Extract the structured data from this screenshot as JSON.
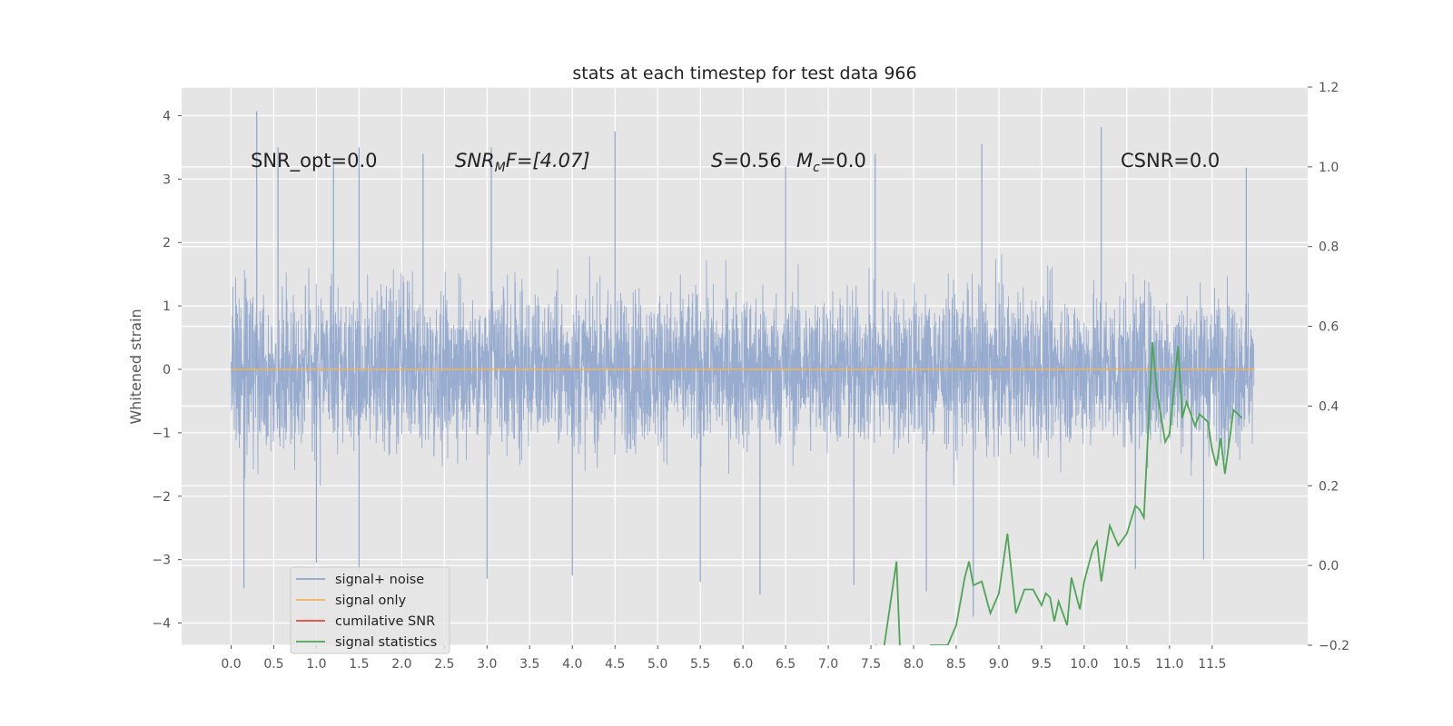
{
  "chart_data": {
    "type": "line",
    "title": "stats at each timestep for test data 966",
    "ylabel": "Whitened strain",
    "xlabel": "",
    "xlim": [
      -0.58,
      12.62
    ],
    "ylim": [
      -4.35,
      4.45
    ],
    "y2lim": [
      -0.2,
      1.2
    ],
    "x_ticks": [
      "0.0",
      "0.5",
      "1.0",
      "1.5",
      "2.0",
      "2.5",
      "3.0",
      "3.5",
      "4.0",
      "4.5",
      "5.0",
      "5.5",
      "6.0",
      "6.5",
      "7.0",
      "7.5",
      "8.0",
      "8.5",
      "9.0",
      "9.5",
      "10.0",
      "10.5",
      "11.0",
      "11.5"
    ],
    "y_ticks": [
      "4",
      "3",
      "2",
      "1",
      "0",
      "−1",
      "−2",
      "−3",
      "−4"
    ],
    "y2_ticks": [
      "1.2",
      "1.0",
      "0.8",
      "0.6",
      "0.4",
      "0.2",
      "0.0",
      "−0.2"
    ],
    "grid": true,
    "legend_position": "lower-left",
    "annotations": {
      "snr_opt": "SNR_opt=0.0",
      "snr_mf_italic": "SNR",
      "snr_mf_sub": "M",
      "snr_mf_rest": "F=[4.07]",
      "s_italic": "S",
      "s_rest": "=0.56",
      "mc_italic": "M",
      "mc_sub": "c",
      "mc_rest": "=0.0",
      "csnr": "CSNR=0.0"
    },
    "colors": {
      "noise": "#8fa5cc",
      "signal": "#f2b25c",
      "snr": "#e24a33",
      "stats": "#4ea556",
      "background": "#e5e5e5",
      "grid": "#ffffff"
    },
    "series": [
      {
        "name": "signal+ noise",
        "color": "#8fa5cc",
        "x_range": [
          0.0,
          11.99
        ],
        "typical_band": [
          -1.85,
          1.6
        ],
        "x_peaks": [
          0.3,
          0.55,
          1.2,
          1.5,
          2.25,
          3.05,
          4.5,
          6.5,
          7.55,
          8.8,
          10.2,
          11.9
        ],
        "y_peaks": [
          4.07,
          3.5,
          3.3,
          3.5,
          3.4,
          3.5,
          3.75,
          3.2,
          3.4,
          3.55,
          3.82,
          3.18
        ],
        "x_troughs": [
          0.15,
          1.0,
          1.5,
          3.0,
          4.0,
          5.5,
          6.2,
          7.3,
          8.15,
          8.7,
          10.6,
          11.4
        ],
        "y_troughs": [
          -3.45,
          -3.05,
          -3.2,
          -3.3,
          -3.25,
          -3.35,
          -3.55,
          -3.4,
          -3.5,
          -3.9,
          -3.15,
          -3.0
        ]
      },
      {
        "name": "signal only",
        "color": "#f2b25c",
        "x": [
          0.0,
          12.0
        ],
        "y": [
          0.0,
          0.0
        ]
      },
      {
        "name": "cumilative SNR",
        "color": "#e24a33",
        "x": [],
        "y": []
      },
      {
        "name": "signal statistics",
        "color": "#4ea556",
        "axis": "right",
        "x": [
          7.55,
          7.65,
          7.8,
          7.85,
          8.1,
          8.2,
          8.4,
          8.5,
          8.6,
          8.65,
          8.7,
          8.8,
          8.9,
          9.0,
          9.1,
          9.2,
          9.3,
          9.4,
          9.5,
          9.55,
          9.6,
          9.65,
          9.7,
          9.8,
          9.85,
          9.95,
          10.0,
          10.1,
          10.15,
          10.2,
          10.3,
          10.4,
          10.5,
          10.6,
          10.65,
          10.7,
          10.8,
          10.85,
          10.95,
          11.0,
          11.1,
          11.15,
          11.2,
          11.3,
          11.35,
          11.45,
          11.5,
          11.55,
          11.6,
          11.65,
          11.75,
          11.85
        ],
        "y": [
          -0.2,
          -0.21,
          0.01,
          -0.26,
          -0.23,
          -0.2,
          -0.2,
          -0.15,
          -0.03,
          0.01,
          -0.05,
          -0.04,
          -0.12,
          -0.07,
          0.08,
          -0.12,
          -0.06,
          -0.06,
          -0.1,
          -0.07,
          -0.08,
          -0.14,
          -0.09,
          -0.15,
          -0.03,
          -0.11,
          -0.04,
          0.04,
          0.06,
          -0.04,
          0.1,
          0.05,
          0.08,
          0.15,
          0.14,
          0.12,
          0.56,
          0.44,
          0.31,
          0.33,
          0.55,
          0.37,
          0.41,
          0.35,
          0.38,
          0.36,
          0.29,
          0.25,
          0.32,
          0.23,
          0.39,
          0.37
        ]
      }
    ]
  }
}
